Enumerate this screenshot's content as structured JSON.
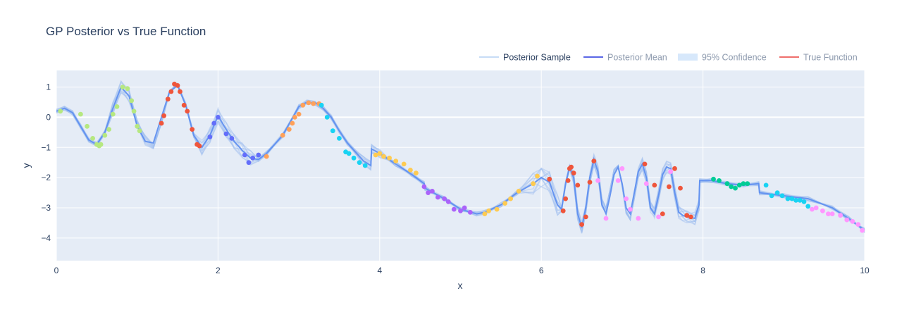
{
  "chart_data": {
    "type": "line",
    "title": "GP Posterior vs True Function",
    "xlabel": "x",
    "ylabel": "y",
    "xlim": [
      0,
      10
    ],
    "ylim": [
      -4.75,
      1.55
    ],
    "xticks": [
      0,
      2,
      4,
      6,
      8,
      10
    ],
    "yticks": [
      1,
      0,
      -1,
      -2,
      -3,
      -4
    ],
    "grid": true,
    "background": "#e5ecf6",
    "legend_position": "top-right",
    "legend": [
      {
        "label": "Posterior Sample",
        "color": "#c7dcf6",
        "kind": "line",
        "visible": true
      },
      {
        "label": "Posterior Mean",
        "color": "#5a67e6",
        "kind": "line",
        "visible": false
      },
      {
        "label": "95% Confidence",
        "color": "#d7e8fb",
        "kind": "band",
        "visible": false
      },
      {
        "label": "True Function",
        "color": "#ef6f6c",
        "kind": "line",
        "visible": false
      }
    ],
    "posterior_mean": {
      "color": "#5b8def",
      "x": [
        0,
        0.1,
        0.2,
        0.3,
        0.4,
        0.5,
        0.6,
        0.7,
        0.8,
        0.9,
        1.0,
        1.1,
        1.2,
        1.3,
        1.4,
        1.5,
        1.6,
        1.7,
        1.8,
        1.9,
        2.0,
        2.1,
        2.2,
        2.3,
        2.4,
        2.5,
        2.6,
        2.8,
        3.0,
        3.1,
        3.2,
        3.3,
        3.4,
        3.5,
        3.6,
        3.7,
        3.8,
        3.89,
        3.9,
        4.0,
        4.2,
        4.4,
        4.55,
        4.56,
        4.8,
        5.0,
        5.2,
        5.3,
        5.5,
        5.7,
        5.9,
        6.0,
        6.1,
        6.2,
        6.25,
        6.3,
        6.35,
        6.4,
        6.45,
        6.5,
        6.55,
        6.6,
        6.65,
        6.7,
        6.75,
        6.8,
        6.85,
        6.9,
        6.95,
        7.0,
        7.05,
        7.1,
        7.15,
        7.2,
        7.25,
        7.3,
        7.35,
        7.4,
        7.45,
        7.5,
        7.55,
        7.6,
        7.65,
        7.7,
        7.75,
        7.8,
        7.9,
        7.95,
        7.96,
        8.1,
        8.3,
        8.5,
        8.69,
        8.7,
        9.0,
        9.3,
        9.6,
        9.8,
        10.0
      ],
      "y": [
        0.2,
        0.3,
        0.15,
        -0.3,
        -0.75,
        -0.9,
        -0.5,
        0.3,
        1.0,
        0.7,
        -0.3,
        -0.8,
        -0.85,
        0.0,
        0.85,
        1.05,
        0.4,
        -0.6,
        -1.0,
        -0.6,
        0.05,
        -0.4,
        -0.8,
        -1.1,
        -1.35,
        -1.4,
        -1.2,
        -0.6,
        0.35,
        0.5,
        0.48,
        0.3,
        0.0,
        -0.45,
        -0.85,
        -1.15,
        -1.45,
        -1.6,
        -1.05,
        -1.2,
        -1.55,
        -1.9,
        -2.2,
        -2.35,
        -2.7,
        -3.05,
        -3.2,
        -3.15,
        -2.9,
        -2.5,
        -2.2,
        -2.0,
        -2.15,
        -2.9,
        -3.05,
        -2.2,
        -1.65,
        -2.0,
        -3.2,
        -3.65,
        -3.0,
        -2.0,
        -1.4,
        -1.8,
        -2.9,
        -3.2,
        -2.6,
        -1.9,
        -1.65,
        -2.2,
        -3.0,
        -3.2,
        -2.5,
        -1.8,
        -1.55,
        -2.0,
        -3.0,
        -3.2,
        -2.6,
        -1.9,
        -1.65,
        -1.7,
        -2.5,
        -3.15,
        -3.25,
        -3.3,
        -3.35,
        -2.9,
        -2.1,
        -2.1,
        -2.2,
        -2.25,
        -2.2,
        -2.5,
        -2.6,
        -2.7,
        -3.0,
        -3.35,
        -3.75
      ]
    },
    "observations": [
      {
        "color": "#b6e880",
        "x": [
          0.05,
          0.3,
          0.38,
          0.45,
          0.5,
          0.53,
          0.55,
          0.6,
          0.65,
          0.7,
          0.75,
          0.82,
          0.88,
          0.93,
          0.96,
          1.0,
          1.03
        ],
        "y": [
          0.2,
          0.1,
          -0.3,
          -0.7,
          -0.9,
          -0.95,
          -0.9,
          -0.6,
          -0.4,
          0.1,
          0.35,
          1.0,
          0.95,
          0.55,
          0.2,
          -0.3,
          -0.45
        ]
      },
      {
        "color": "#ef553b",
        "x": [
          1.3,
          1.33,
          1.38,
          1.42,
          1.46,
          1.5,
          1.53,
          1.58,
          1.62,
          1.68,
          1.74,
          1.77
        ],
        "y": [
          -0.2,
          0.05,
          0.6,
          0.85,
          1.1,
          1.05,
          0.85,
          0.4,
          0.2,
          -0.4,
          -0.9,
          -0.95
        ]
      },
      {
        "color": "#636efa",
        "x": [
          1.9,
          1.95,
          2.0,
          2.1,
          2.17,
          2.33,
          2.38,
          2.43,
          2.5
        ],
        "y": [
          -0.65,
          -0.2,
          0.0,
          -0.55,
          -0.7,
          -1.25,
          -1.5,
          -1.35,
          -1.25
        ]
      },
      {
        "color": "#ffa15a",
        "x": [
          2.6,
          2.8,
          2.88,
          2.92,
          2.95,
          3.0,
          3.05,
          3.12,
          3.18,
          3.25
        ],
        "y": [
          -1.3,
          -0.6,
          -0.4,
          -0.2,
          0.0,
          0.1,
          0.4,
          0.48,
          0.45,
          0.45
        ]
      },
      {
        "color": "#19d3f3",
        "x": [
          3.28,
          3.35,
          3.42,
          3.5,
          3.58,
          3.62,
          3.68,
          3.75,
          3.82
        ],
        "y": [
          0.4,
          0.0,
          -0.45,
          -0.7,
          -1.15,
          -1.2,
          -1.35,
          -1.5,
          -1.6
        ]
      },
      {
        "color": "#fecb52",
        "x": [
          3.95,
          4.0,
          4.05,
          4.12,
          4.2,
          4.3,
          4.38,
          4.45,
          5.3,
          5.35,
          5.45,
          5.55,
          5.62,
          5.72,
          5.9,
          5.95
        ],
        "y": [
          -1.25,
          -1.2,
          -1.3,
          -1.35,
          -1.45,
          -1.55,
          -1.75,
          -1.85,
          -3.2,
          -3.1,
          -3.05,
          -2.85,
          -2.7,
          -2.45,
          -2.2,
          -1.95
        ]
      },
      {
        "color": "#ab63fa",
        "x": [
          4.55,
          4.6,
          4.65,
          4.72,
          4.8,
          4.85,
          4.92,
          5.0,
          5.05,
          5.12
        ],
        "y": [
          -2.3,
          -2.5,
          -2.45,
          -2.65,
          -2.7,
          -2.8,
          -3.05,
          -3.1,
          -3.0,
          -3.15
        ]
      },
      {
        "color": "#ef553b",
        "x": [
          6.1,
          6.27,
          6.3,
          6.33,
          6.35,
          6.37,
          6.4,
          6.45,
          6.5,
          6.55,
          6.6,
          6.65
        ],
        "y": [
          -2.05,
          -3.1,
          -2.7,
          -2.1,
          -1.7,
          -1.65,
          -1.85,
          -2.25,
          -3.55,
          -3.3,
          -2.15,
          -1.45
        ]
      },
      {
        "color": "#ff97ff",
        "x": [
          6.7,
          6.8,
          6.95,
          7.0,
          7.05,
          7.1,
          7.2,
          7.3,
          7.45,
          7.6
        ],
        "y": [
          -2.1,
          -3.35,
          -2.1,
          -1.7,
          -2.7,
          -3.05,
          -3.35,
          -2.2,
          -3.3,
          -1.8
        ]
      },
      {
        "color": "#ef553b",
        "x": [
          7.28,
          7.4,
          7.5,
          7.58,
          7.65,
          7.72,
          7.8,
          7.85
        ],
        "y": [
          -1.55,
          -2.25,
          -3.2,
          -2.3,
          -1.7,
          -2.35,
          -3.25,
          -3.3
        ]
      },
      {
        "color": "#00cc96",
        "x": [
          8.13,
          8.2,
          8.3,
          8.35,
          8.4,
          8.45,
          8.5,
          8.55
        ],
        "y": [
          -2.05,
          -2.1,
          -2.2,
          -2.3,
          -2.35,
          -2.25,
          -2.2,
          -2.2
        ]
      },
      {
        "color": "#19d3f3",
        "x": [
          8.78,
          8.85,
          8.92,
          8.98,
          9.05,
          9.1,
          9.15,
          9.2,
          9.25,
          9.3
        ],
        "y": [
          -2.25,
          -2.6,
          -2.5,
          -2.6,
          -2.7,
          -2.7,
          -2.75,
          -2.75,
          -2.8,
          -2.95
        ]
      },
      {
        "color": "#ff97ff",
        "x": [
          9.35,
          9.4,
          9.48,
          9.55,
          9.6,
          9.7,
          9.78,
          9.85,
          9.92,
          9.97
        ],
        "y": [
          -3.05,
          -3.0,
          -3.1,
          -3.2,
          -3.2,
          -3.25,
          -3.4,
          -3.45,
          -3.55,
          -3.75
        ]
      }
    ]
  }
}
